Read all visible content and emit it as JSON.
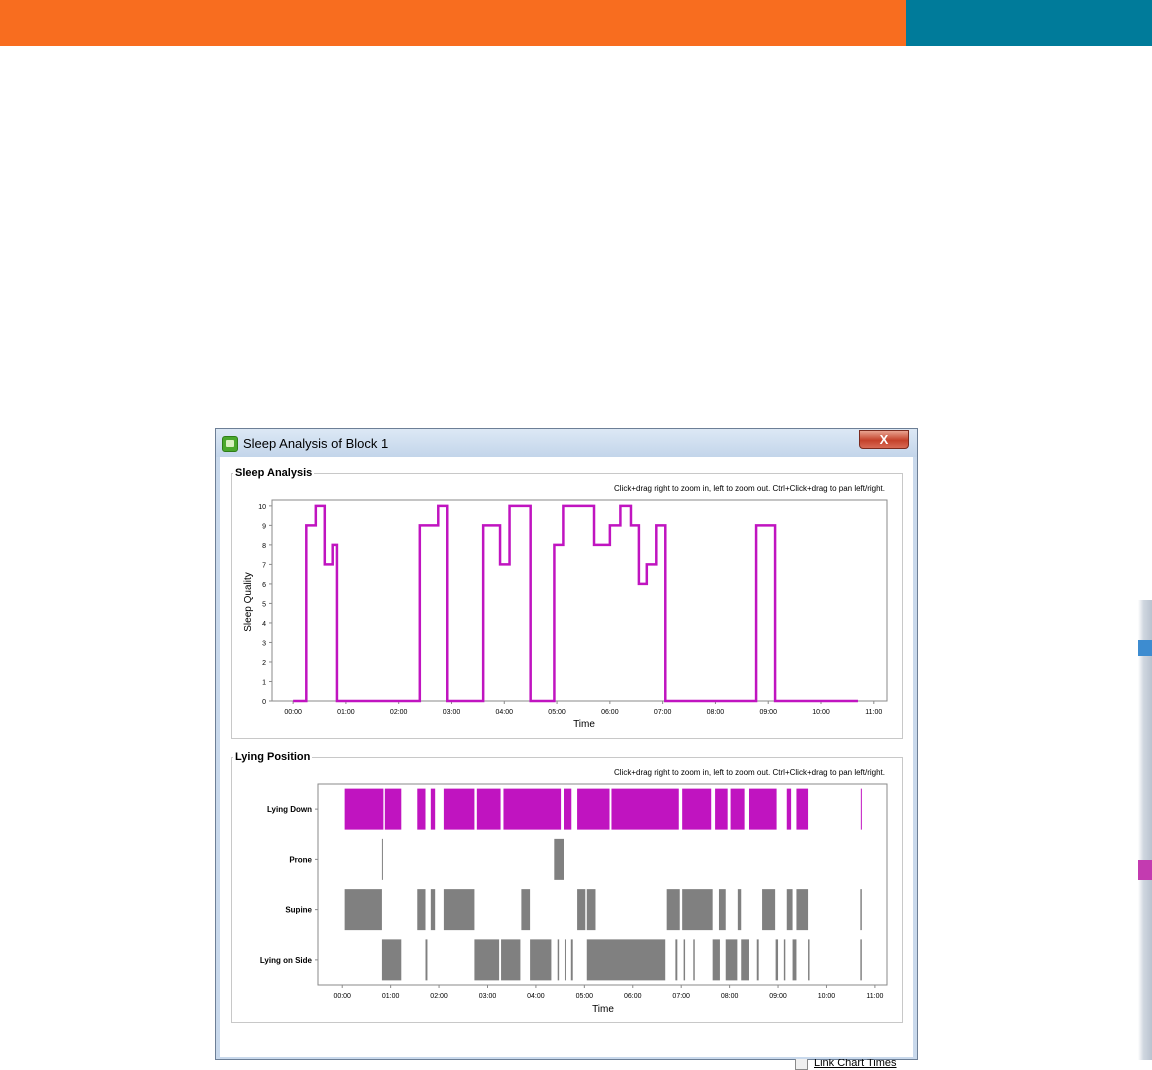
{
  "colors": {
    "orange_band": "#f86d1f",
    "teal_band": "#007b9a",
    "primary": "#c014c0",
    "secondary": "#808080"
  },
  "window": {
    "title": "Sleep Analysis of Block 1",
    "close_label": "X",
    "link_chart_times_label": "Link Chart Times",
    "link_chart_times_checked": false
  },
  "panels": {
    "sleep_analysis": {
      "title": "Sleep Analysis",
      "hint": "Click+drag right to zoom in, left to zoom out. Ctrl+Click+drag to pan left/right."
    },
    "lying_position": {
      "title": "Lying Position",
      "hint": "Click+drag right to zoom in, left to zoom out. Ctrl+Click+drag to pan left/right."
    }
  },
  "chart_data": [
    {
      "type": "line",
      "step": true,
      "title": "",
      "xlabel": "Time",
      "ylabel": "Sleep Quality",
      "xlim": [
        -0.4,
        11.25
      ],
      "ylim": [
        0,
        10.3
      ],
      "x_ticks": [
        "00:00",
        "01:00",
        "02:00",
        "03:00",
        "04:00",
        "05:00",
        "06:00",
        "07:00",
        "08:00",
        "09:00",
        "10:00",
        "11:00"
      ],
      "y_ticks": [
        "0",
        "1",
        "2",
        "3",
        "4",
        "5",
        "6",
        "7",
        "8",
        "9",
        "10"
      ],
      "series": [
        {
          "x": [
            0.0,
            0.25,
            0.43,
            0.6,
            0.75,
            0.83,
            0.92,
            2.4,
            2.75,
            2.92,
            3.6,
            3.92,
            4.1,
            4.5,
            4.8,
            4.95,
            5.12,
            5.7,
            6.0,
            6.2,
            6.4,
            6.55,
            6.7,
            6.88,
            7.05,
            8.77,
            9.13,
            10.7
          ],
          "y": [
            0,
            9,
            10,
            7,
            8,
            0,
            0,
            9,
            10,
            0,
            9,
            7,
            10,
            0,
            0,
            8,
            10,
            8,
            9,
            10,
            9,
            6,
            7,
            9,
            0,
            9,
            0,
            0
          ]
        }
      ]
    },
    {
      "type": "timeline",
      "title": "",
      "xlabel": "Time",
      "ylabel": "",
      "xlim": [
        -0.5,
        11.25
      ],
      "x_ticks": [
        "00:00",
        "01:00",
        "02:00",
        "03:00",
        "04:00",
        "05:00",
        "06:00",
        "07:00",
        "08:00",
        "09:00",
        "10:00",
        "11:00"
      ],
      "categories": [
        "Lying Down",
        "Prone",
        "Supine",
        "Lying on Side"
      ],
      "series": [
        {
          "name": "Lying Down",
          "color": "#c014c0",
          "segments": [
            [
              0.05,
              0.85
            ],
            [
              0.88,
              1.22
            ],
            [
              1.55,
              1.72
            ],
            [
              1.83,
              1.92
            ],
            [
              2.1,
              2.73
            ],
            [
              2.78,
              3.27
            ],
            [
              3.33,
              4.52
            ],
            [
              4.58,
              4.73
            ],
            [
              4.85,
              5.52
            ],
            [
              5.56,
              6.95
            ],
            [
              7.02,
              7.62
            ],
            [
              7.7,
              7.96
            ],
            [
              8.02,
              8.31
            ],
            [
              8.4,
              8.97
            ],
            [
              9.18,
              9.27
            ],
            [
              9.38,
              9.62
            ],
            [
              10.71,
              10.73
            ]
          ]
        },
        {
          "name": "Prone",
          "color": "#808080",
          "segments": [
            [
              0.82,
              0.84
            ],
            [
              4.38,
              4.58
            ]
          ]
        },
        {
          "name": "Supine",
          "color": "#808080",
          "segments": [
            [
              0.05,
              0.82
            ],
            [
              1.55,
              1.72
            ],
            [
              1.83,
              1.92
            ],
            [
              2.1,
              2.73
            ],
            [
              3.7,
              3.88
            ],
            [
              4.85,
              5.02
            ],
            [
              5.05,
              5.23
            ],
            [
              6.7,
              6.97
            ],
            [
              7.02,
              7.65
            ],
            [
              7.78,
              7.92
            ],
            [
              8.17,
              8.24
            ],
            [
              8.67,
              8.94
            ],
            [
              9.18,
              9.3
            ],
            [
              9.38,
              9.62
            ],
            [
              10.7,
              10.73
            ]
          ]
        },
        {
          "name": "Lying on Side",
          "color": "#808080",
          "segments": [
            [
              0.82,
              1.22
            ],
            [
              1.72,
              1.76
            ],
            [
              2.73,
              3.24
            ],
            [
              3.28,
              3.68
            ],
            [
              3.88,
              4.32
            ],
            [
              4.45,
              4.48
            ],
            [
              4.6,
              4.62
            ],
            [
              4.72,
              4.76
            ],
            [
              5.05,
              6.67
            ],
            [
              6.88,
              6.92
            ],
            [
              7.05,
              7.08
            ],
            [
              7.25,
              7.28
            ],
            [
              7.65,
              7.8
            ],
            [
              7.92,
              8.16
            ],
            [
              8.24,
              8.4
            ],
            [
              8.56,
              8.6
            ],
            [
              8.95,
              9.0
            ],
            [
              9.12,
              9.15
            ],
            [
              9.3,
              9.38
            ],
            [
              9.62,
              9.65
            ],
            [
              10.7,
              10.73
            ]
          ]
        }
      ]
    }
  ]
}
